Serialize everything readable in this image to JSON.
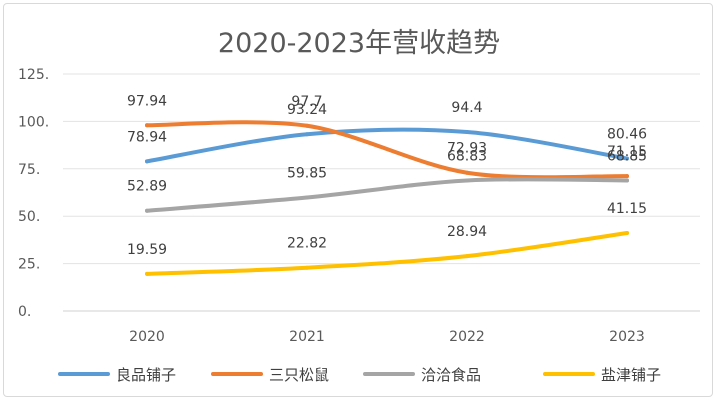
{
  "chart_data": {
    "type": "line",
    "title": "2020-2023年营收趋势",
    "categories": [
      "2020",
      "2021",
      "2022",
      "2023"
    ],
    "y_ticks": [
      "0.",
      "25.",
      "50.",
      "75.",
      "100.",
      "125."
    ],
    "ylim": [
      0,
      125
    ],
    "grid": true,
    "legend_position": "bottom",
    "series": [
      {
        "name": "良品铺子",
        "color": "#5b9bd5",
        "values": [
          78.94,
          93.24,
          94.4,
          80.46
        ],
        "labels": [
          "78.94",
          "93.24",
          "94.4",
          "80.46"
        ]
      },
      {
        "name": "三只松鼠",
        "color": "#ed7d31",
        "values": [
          97.94,
          97.7,
          72.93,
          71.15
        ],
        "labels": [
          "97.94",
          "97.7",
          "72.93",
          "71.15"
        ]
      },
      {
        "name": "洽洽食品",
        "color": "#a5a5a5",
        "values": [
          52.89,
          59.85,
          68.83,
          68.85
        ],
        "labels": [
          "52.89",
          "59.85",
          "68.83",
          "68.85"
        ]
      },
      {
        "name": "盐津铺子",
        "color": "#ffc000",
        "values": [
          19.59,
          22.82,
          28.94,
          41.15
        ],
        "labels": [
          "19.59",
          "22.82",
          "28.94",
          "41.15"
        ]
      }
    ]
  }
}
